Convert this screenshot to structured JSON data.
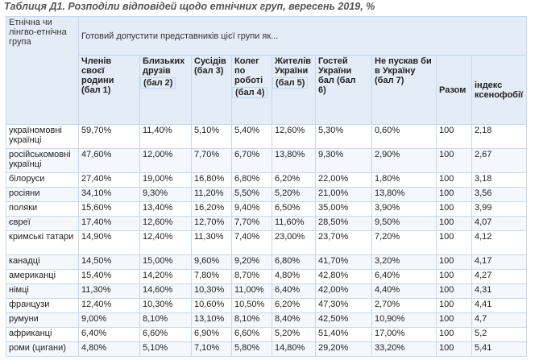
{
  "caption": "Таблиця Д1. Розподіли відповідей щодо етнічних груп, вересень 2019, %",
  "header": {
    "ethnic_col": "Етнічна чи лінгво-етнічна група",
    "ready_to_admit": "Готовий допустити представників цієї групи як...",
    "columns": [
      {
        "label": "Членів своєї родини",
        "score": "(бал 1)"
      },
      {
        "label": "Близьких друзів",
        "score": "(бал 2)"
      },
      {
        "label": "Сусідів",
        "score": "(бал 3)"
      },
      {
        "label": "Колег по роботі",
        "score": "(бал 4)"
      },
      {
        "label": "Жителів України",
        "score": "(бал 5)"
      },
      {
        "label": "Гостей України бал (бал",
        "score": "6)"
      },
      {
        "label": "Не пускав би в Україну",
        "score": "(бал 7)"
      }
    ],
    "total": "Разом",
    "index": "індекс ксенофобії"
  },
  "rows": [
    {
      "group": "україномовні українці",
      "v": [
        "59,70%",
        "11,40%",
        "5,10%",
        "5,40%",
        "12,60%",
        "5,30%",
        "0,60%"
      ],
      "total": "100",
      "index": "2,18"
    },
    {
      "group": "російськомовні українці",
      "v": [
        "47,60%",
        "12,00%",
        "7,70%",
        "6,70%",
        "13,80%",
        "9,30%",
        "2,90%"
      ],
      "total": "100",
      "index": "2,67"
    },
    {
      "group": "білоруси",
      "v": [
        "27,40%",
        "19,00%",
        "16,80%",
        "6,80%",
        "6,20%",
        "22,00%",
        "1,80%"
      ],
      "total": "100",
      "index": "3,18"
    },
    {
      "group": "росіяни",
      "v": [
        "34,10%",
        "9,30%",
        "11,20%",
        "5,50%",
        "5,20%",
        "21,00%",
        "13,80%"
      ],
      "total": "100",
      "index": "3,56"
    },
    {
      "group": "поляки",
      "v": [
        "15,60%",
        "13,40%",
        "16,20%",
        "9,40%",
        "6,50%",
        "35,00%",
        "3,90%"
      ],
      "total": "100",
      "index": "3,99"
    },
    {
      "group": "євреї",
      "v": [
        "17,40%",
        "12,60%",
        "12,70%",
        "7,70%",
        "11,60%",
        "28,50%",
        "9,50%"
      ],
      "total": "100",
      "index": "4,07"
    },
    {
      "group": "кримські татари",
      "v": [
        "14,90%",
        "12,40%",
        "11,30%",
        "7,40%",
        "23,00%",
        "23,70%",
        "7,20%"
      ],
      "total": "100",
      "index": "4,12"
    },
    {
      "group": "канадці",
      "v": [
        "14,50%",
        "15,00%",
        "9,60%",
        "9,20%",
        "6,80%",
        "41,70%",
        "3,20%"
      ],
      "total": "100",
      "index": "4,17"
    },
    {
      "group": "американці",
      "v": [
        "15,40%",
        "14,20%",
        "7,80%",
        "8,70%",
        "4,80%",
        "42,80%",
        "6,40%"
      ],
      "total": "100",
      "index": "4,27"
    },
    {
      "group": "німці",
      "v": [
        "11,30%",
        "14,60%",
        "10,30%",
        "11,00%",
        "6,40%",
        "42,00%",
        "4,40%"
      ],
      "total": "100",
      "index": "4,31"
    },
    {
      "group": "французи",
      "v": [
        "12,40%",
        "10,30%",
        "10,60%",
        "10,50%",
        "6,20%",
        "47,30%",
        "2,70%"
      ],
      "total": "100",
      "index": "4,41"
    },
    {
      "group": "румуни",
      "v": [
        "9,00%",
        "8,10%",
        "13,10%",
        "8,10%",
        "8,40%",
        "42,50%",
        "10,90%"
      ],
      "total": "100",
      "index": "4,7"
    },
    {
      "group": "африканці",
      "v": [
        "6,40%",
        "6,60%",
        "6,90%",
        "6,60%",
        "5,20%",
        "51,40%",
        "17,00%"
      ],
      "total": "100",
      "index": "5,2"
    },
    {
      "group": "роми (цигани)",
      "v": [
        "4,80%",
        "5,10%",
        "7,10%",
        "5,80%",
        "14,80%",
        "29,20%",
        "33,20%"
      ],
      "total": "100",
      "index": "5,41"
    }
  ]
}
